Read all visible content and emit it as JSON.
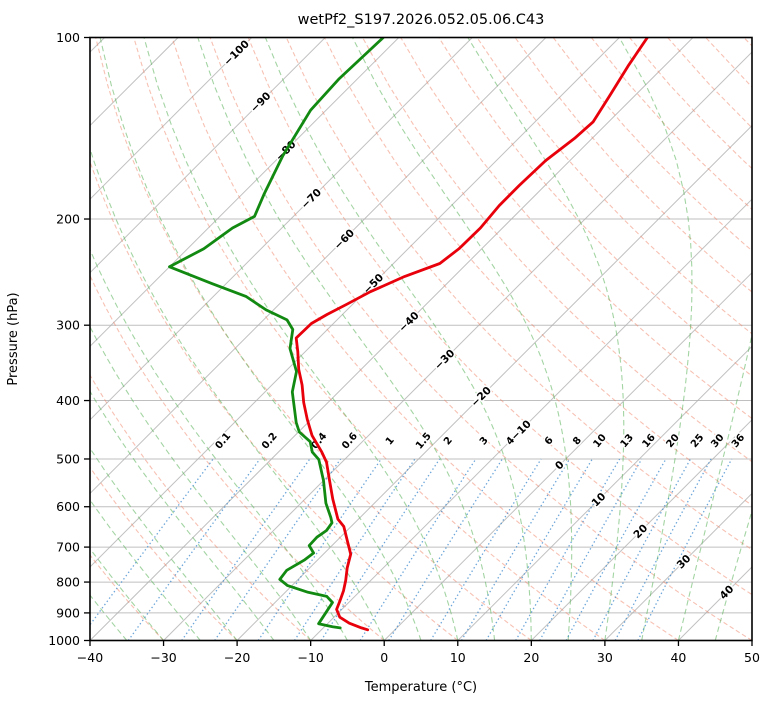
{
  "title": "wetPf2_S197.2026.052.05.06.C43",
  "chart_data": {
    "type": "line",
    "subtype": "skewT-logP-sounding",
    "title": "wetPf2_S197.2026.052.05.06.C43",
    "xlabel": "Temperature (°C)",
    "ylabel": "Pressure (hPa)",
    "xlim": [
      -40,
      50
    ],
    "ylim": [
      1000,
      100
    ],
    "y_scale": "log",
    "skew_deg": 45,
    "x_ticks": [
      -40,
      -30,
      -20,
      -10,
      0,
      10,
      20,
      30,
      40,
      50
    ],
    "y_ticks": [
      100,
      200,
      300,
      400,
      500,
      600,
      700,
      800,
      900,
      1000
    ],
    "isotherms": {
      "start": -120,
      "end": 50,
      "step": 10
    },
    "isotherm_labels": [
      {
        "t": -100,
        "p": 106
      },
      {
        "t": -90,
        "p": 128
      },
      {
        "t": -80,
        "p": 154
      },
      {
        "t": -70,
        "p": 185
      },
      {
        "t": -60,
        "p": 216
      },
      {
        "t": -50,
        "p": 256
      },
      {
        "t": -40,
        "p": 296
      },
      {
        "t": -30,
        "p": 342
      },
      {
        "t": -20,
        "p": 394
      },
      {
        "t": -10,
        "p": 448
      },
      {
        "t": 0,
        "p": 512
      },
      {
        "t": 10,
        "p": 584
      },
      {
        "t": 20,
        "p": 659
      },
      {
        "t": 30,
        "p": 740
      },
      {
        "t": 40,
        "p": 832
      }
    ],
    "dry_adiabats": {
      "theta_start_c": -40,
      "theta_end_c": 190,
      "step_c": 10
    },
    "moist_adiabats": {
      "t_start_c": -40,
      "t_end_c": 45,
      "step_c": 5
    },
    "mixing_ratio": {
      "values_g_kg": [
        0.1,
        0.2,
        0.4,
        0.6,
        1,
        1.5,
        2,
        3,
        4,
        6,
        8,
        10,
        13,
        16,
        20,
        25,
        30,
        36
      ],
      "top_pressure": 500,
      "label_pressure": 470
    },
    "series": [
      {
        "name": "temperature",
        "color": "#e8000b",
        "points_p_t": [
          [
            100,
            -46.2
          ],
          [
            111,
            -45.0
          ],
          [
            125,
            -43.4
          ],
          [
            138,
            -42.1
          ],
          [
            147,
            -42.4
          ],
          [
            160,
            -43.3
          ],
          [
            176,
            -43.5
          ],
          [
            190,
            -43.5
          ],
          [
            207,
            -43.0
          ],
          [
            224,
            -43.1
          ],
          [
            237,
            -43.7
          ],
          [
            249,
            -46.7
          ],
          [
            264,
            -49.3
          ],
          [
            277,
            -50.8
          ],
          [
            288,
            -52.1
          ],
          [
            298,
            -53.0
          ],
          [
            315,
            -53.1
          ],
          [
            332,
            -51.0
          ],
          [
            355,
            -48.5
          ],
          [
            377,
            -45.9
          ],
          [
            403,
            -43.3
          ],
          [
            430,
            -40.5
          ],
          [
            457,
            -37.7
          ],
          [
            487,
            -34.1
          ],
          [
            506,
            -32.1
          ],
          [
            540,
            -29.4
          ],
          [
            583,
            -26.2
          ],
          [
            629,
            -22.8
          ],
          [
            647,
            -21.0
          ],
          [
            683,
            -18.6
          ],
          [
            719,
            -16.3
          ],
          [
            758,
            -14.9
          ],
          [
            795,
            -13.4
          ],
          [
            827,
            -12.3
          ],
          [
            860,
            -11.4
          ],
          [
            888,
            -10.7
          ],
          [
            915,
            -9.2
          ],
          [
            936,
            -7.1
          ],
          [
            953,
            -4.8
          ],
          [
            960,
            -3.7
          ]
        ]
      },
      {
        "name": "dewpoint",
        "color": "#128a12",
        "points_p_t": [
          [
            100,
            -82.1
          ],
          [
            117,
            -82.5
          ],
          [
            132,
            -82.1
          ],
          [
            157,
            -79.7
          ],
          [
            182,
            -77.0
          ],
          [
            198,
            -75.3
          ],
          [
            207,
            -76.7
          ],
          [
            224,
            -77.8
          ],
          [
            240,
            -80.0
          ],
          [
            256,
            -71.9
          ],
          [
            269,
            -65.5
          ],
          [
            283,
            -61.0
          ],
          [
            294,
            -56.8
          ],
          [
            305,
            -54.7
          ],
          [
            328,
            -52.5
          ],
          [
            358,
            -48.5
          ],
          [
            387,
            -46.3
          ],
          [
            435,
            -41.6
          ],
          [
            451,
            -39.9
          ],
          [
            468,
            -37.1
          ],
          [
            487,
            -35.4
          ],
          [
            501,
            -33.5
          ],
          [
            543,
            -30.0
          ],
          [
            592,
            -26.6
          ],
          [
            625,
            -24.0
          ],
          [
            638,
            -23.1
          ],
          [
            657,
            -22.8
          ],
          [
            674,
            -23.2
          ],
          [
            696,
            -23.1
          ],
          [
            716,
            -21.5
          ],
          [
            736,
            -21.8
          ],
          [
            765,
            -22.8
          ],
          [
            792,
            -22.5
          ],
          [
            811,
            -20.6
          ],
          [
            832,
            -16.9
          ],
          [
            845,
            -13.8
          ],
          [
            865,
            -12.2
          ],
          [
            894,
            -11.8
          ],
          [
            938,
            -11.2
          ],
          [
            949,
            -8.9
          ],
          [
            953,
            -7.7
          ]
        ]
      }
    ],
    "colors": {
      "grid": "#b0b0b0",
      "isotherm": "#b0b0b0",
      "dry_adiabat": "#f08468",
      "moist_adiabat": "#58b058",
      "mixing_ratio": "#3a87cc",
      "label_negative": "#2b7bb8",
      "label_positive": "#c43737",
      "label_zero": "#777777",
      "frame": "#000000"
    },
    "grid": true,
    "legend": "none"
  }
}
